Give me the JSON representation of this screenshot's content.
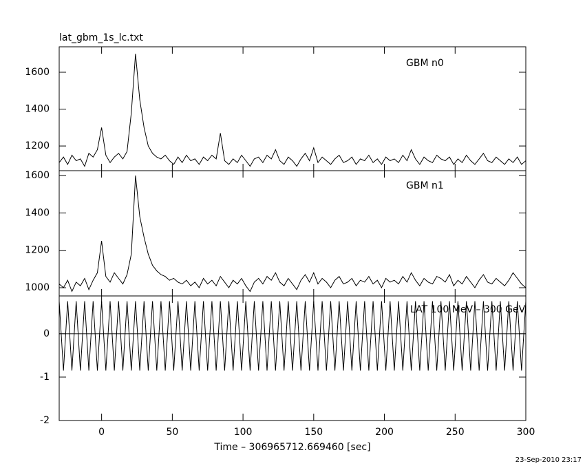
{
  "timestamp": "23-Sep-2010 23:17",
  "chart_data": [
    {
      "type": "line",
      "title": "lat_gbm_1s_lc.txt",
      "label": "GBM n0",
      "xlim": [
        -30,
        300
      ],
      "xticks": [
        0,
        50,
        100,
        150,
        200,
        250,
        300
      ],
      "ylim": [
        1066,
        1738
      ],
      "yticks": [
        1200,
        1400,
        1600
      ],
      "color": "#000000",
      "x": [
        -30,
        -27,
        -24,
        -21,
        -18,
        -15,
        -12,
        -9,
        -6,
        -3,
        0,
        3,
        6,
        9,
        12,
        15,
        18,
        21,
        24,
        27,
        30,
        33,
        36,
        39,
        42,
        45,
        48,
        51,
        54,
        57,
        60,
        63,
        66,
        69,
        72,
        75,
        78,
        81,
        84,
        87,
        90,
        93,
        96,
        99,
        102,
        105,
        108,
        111,
        114,
        117,
        120,
        123,
        126,
        129,
        132,
        135,
        138,
        141,
        144,
        147,
        150,
        153,
        156,
        159,
        162,
        165,
        168,
        171,
        174,
        177,
        180,
        183,
        186,
        189,
        192,
        195,
        198,
        201,
        204,
        207,
        210,
        213,
        216,
        219,
        222,
        225,
        228,
        231,
        234,
        237,
        240,
        243,
        246,
        249,
        252,
        255,
        258,
        261,
        264,
        267,
        270,
        273,
        276,
        279,
        282,
        285,
        288,
        291,
        294,
        297,
        300
      ],
      "values": [
        1110,
        1140,
        1100,
        1150,
        1120,
        1130,
        1090,
        1160,
        1140,
        1180,
        1300,
        1150,
        1110,
        1140,
        1160,
        1130,
        1170,
        1380,
        1700,
        1450,
        1300,
        1200,
        1160,
        1140,
        1130,
        1150,
        1120,
        1100,
        1140,
        1110,
        1150,
        1120,
        1130,
        1100,
        1140,
        1120,
        1150,
        1130,
        1270,
        1120,
        1100,
        1130,
        1110,
        1150,
        1120,
        1090,
        1130,
        1140,
        1110,
        1150,
        1130,
        1180,
        1120,
        1100,
        1140,
        1120,
        1090,
        1130,
        1160,
        1120,
        1190,
        1110,
        1140,
        1120,
        1100,
        1130,
        1150,
        1110,
        1120,
        1140,
        1100,
        1130,
        1120,
        1150,
        1110,
        1130,
        1100,
        1140,
        1120,
        1130,
        1110,
        1150,
        1120,
        1180,
        1130,
        1100,
        1140,
        1120,
        1110,
        1150,
        1130,
        1120,
        1140,
        1100,
        1130,
        1110,
        1150,
        1120,
        1100,
        1130,
        1160,
        1120,
        1110,
        1140,
        1120,
        1100,
        1130,
        1110,
        1140,
        1100,
        1120
      ]
    },
    {
      "type": "line",
      "label": "GBM n1",
      "xlim": [
        -30,
        300
      ],
      "xticks": [
        0,
        50,
        100,
        150,
        200,
        250,
        300
      ],
      "ylim": [
        956,
        1626
      ],
      "yticks": [
        1000,
        1200,
        1400,
        1600
      ],
      "color": "#000000",
      "x": [
        -30,
        -27,
        -24,
        -21,
        -18,
        -15,
        -12,
        -9,
        -6,
        -3,
        0,
        3,
        6,
        9,
        12,
        15,
        18,
        21,
        24,
        27,
        30,
        33,
        36,
        39,
        42,
        45,
        48,
        51,
        54,
        57,
        60,
        63,
        66,
        69,
        72,
        75,
        78,
        81,
        84,
        87,
        90,
        93,
        96,
        99,
        102,
        105,
        108,
        111,
        114,
        117,
        120,
        123,
        126,
        129,
        132,
        135,
        138,
        141,
        144,
        147,
        150,
        153,
        156,
        159,
        162,
        165,
        168,
        171,
        174,
        177,
        180,
        183,
        186,
        189,
        192,
        195,
        198,
        201,
        204,
        207,
        210,
        213,
        216,
        219,
        222,
        225,
        228,
        231,
        234,
        237,
        240,
        243,
        246,
        249,
        252,
        255,
        258,
        261,
        264,
        267,
        270,
        273,
        276,
        279,
        282,
        285,
        288,
        291,
        294,
        297,
        300
      ],
      "values": [
        1020,
        1000,
        1040,
        980,
        1030,
        1010,
        1050,
        990,
        1040,
        1080,
        1250,
        1060,
        1030,
        1080,
        1050,
        1020,
        1070,
        1180,
        1600,
        1380,
        1270,
        1180,
        1120,
        1090,
        1070,
        1060,
        1040,
        1050,
        1030,
        1020,
        1040,
        1010,
        1030,
        1000,
        1050,
        1020,
        1040,
        1010,
        1060,
        1030,
        1000,
        1040,
        1020,
        1050,
        1010,
        980,
        1030,
        1050,
        1020,
        1060,
        1040,
        1080,
        1030,
        1010,
        1050,
        1020,
        990,
        1040,
        1070,
        1030,
        1080,
        1020,
        1050,
        1030,
        1000,
        1040,
        1060,
        1020,
        1030,
        1050,
        1010,
        1040,
        1030,
        1060,
        1020,
        1040,
        1000,
        1050,
        1030,
        1040,
        1020,
        1060,
        1030,
        1080,
        1040,
        1010,
        1050,
        1030,
        1020,
        1060,
        1050,
        1030,
        1070,
        1010,
        1040,
        1020,
        1060,
        1030,
        1000,
        1040,
        1070,
        1030,
        1020,
        1050,
        1030,
        1010,
        1040,
        1080,
        1050,
        1020,
        1000
      ]
    },
    {
      "type": "line",
      "label": "LAT 100 MeV – 300 GeV",
      "xlabel": "Time – 306965712.669460 [sec]",
      "xlim": [
        -30,
        300
      ],
      "xticks": [
        0,
        50,
        100,
        150,
        200,
        250,
        300
      ],
      "ylim": [
        -2,
        0.87
      ],
      "yticks": [
        -2,
        -1,
        0
      ],
      "reference_line": 0,
      "color": "#000000",
      "x": [
        -30,
        -27,
        -24,
        -21,
        -18,
        -15,
        -12,
        -9,
        -6,
        -3,
        0,
        3,
        6,
        9,
        12,
        15,
        18,
        21,
        24,
        27,
        30,
        33,
        36,
        39,
        42,
        45,
        48,
        51,
        54,
        57,
        60,
        63,
        66,
        69,
        72,
        75,
        78,
        81,
        84,
        87,
        90,
        93,
        96,
        99,
        102,
        105,
        108,
        111,
        114,
        117,
        120,
        123,
        126,
        129,
        132,
        135,
        138,
        141,
        144,
        147,
        150,
        153,
        156,
        159,
        162,
        165,
        168,
        171,
        174,
        177,
        180,
        183,
        186,
        189,
        192,
        195,
        198,
        201,
        204,
        207,
        210,
        213,
        216,
        219,
        222,
        225,
        228,
        231,
        234,
        237,
        240,
        243,
        246,
        249,
        252,
        255,
        258,
        261,
        264,
        267,
        270,
        273,
        276,
        279,
        282,
        285,
        288,
        291,
        294,
        297,
        300
      ],
      "values": [
        0.75,
        -0.85,
        0.75,
        -0.85,
        0.75,
        -0.85,
        0.75,
        -0.85,
        0.75,
        -0.85,
        0.75,
        -0.85,
        0.75,
        -0.85,
        0.75,
        -0.85,
        0.75,
        -0.85,
        0.75,
        -0.85,
        0.75,
        -0.85,
        0.75,
        -0.85,
        0.75,
        -0.85,
        0.75,
        -0.85,
        0.75,
        -0.85,
        0.75,
        -0.85,
        0.75,
        -0.85,
        0.75,
        -0.85,
        0.75,
        -0.85,
        0.75,
        -0.85,
        0.75,
        -0.85,
        0.75,
        -0.85,
        0.75,
        -0.85,
        0.75,
        -0.85,
        0.75,
        -0.85,
        0.75,
        -0.85,
        0.75,
        -0.85,
        0.75,
        -0.85,
        0.75,
        -0.85,
        0.75,
        -0.85,
        0.75,
        -0.85,
        0.75,
        -0.85,
        0.75,
        -0.85,
        0.75,
        -0.85,
        0.75,
        -0.85,
        0.75,
        -0.85,
        0.75,
        -0.85,
        0.75,
        -0.85,
        0.75,
        -0.85,
        0.75,
        -0.85,
        0.75,
        -0.85,
        0.75,
        -0.85,
        0.75,
        -0.85,
        0.75,
        -0.85,
        0.75,
        -0.85,
        0.75,
        -0.85,
        0.75,
        -0.85,
        0.75,
        -0.85,
        0.75,
        -0.85,
        0.75,
        -0.85,
        0.75,
        -0.85,
        0.75,
        -0.85,
        0.75,
        -0.85,
        0.75,
        -0.85,
        0.75,
        -0.85,
        0.75
      ]
    }
  ]
}
